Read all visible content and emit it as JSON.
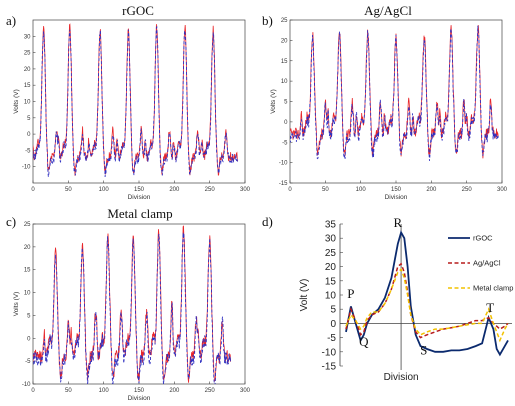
{
  "figure": {
    "panels": [
      {
        "letter": "a)",
        "title": "rGOC"
      },
      {
        "letter": "b)",
        "title": "Ag/AgCl"
      },
      {
        "letter": "c)",
        "title": "Metal clamp"
      },
      {
        "letter": "d)",
        "title": ""
      }
    ]
  },
  "colors": {
    "red": "#e8262a",
    "blue": "#3030c0",
    "navy": "#0b2a6e",
    "darkred": "#b71c1c",
    "yellow": "#f2c200",
    "axis": "#444444"
  },
  "chart_data": [
    {
      "type": "line",
      "title": "rGOC",
      "xlabel": "Division",
      "ylabel": "Volts (V)",
      "xlim": [
        0,
        300
      ],
      "ylim": [
        -15,
        35
      ],
      "xticks": [
        0,
        50,
        100,
        150,
        200,
        250,
        300
      ],
      "yticks": [
        -10,
        -5,
        0,
        5,
        10,
        15,
        20,
        25,
        30
      ],
      "beats": [
        15,
        52,
        95,
        135,
        175,
        215,
        255
      ],
      "peaks": [
        33,
        33,
        32,
        32,
        33,
        33,
        32
      ],
      "x_range": [
        0,
        290
      ],
      "baseline": -7,
      "series": [
        {
          "color": "red",
          "dash": "solid"
        },
        {
          "color": "blue",
          "dash": "dashed"
        }
      ]
    },
    {
      "type": "line",
      "title": "Ag/AgCl",
      "xlabel": "Division",
      "ylabel": "Volts (V)",
      "xlim": [
        0,
        300
      ],
      "ylim": [
        -15,
        25
      ],
      "xticks": [
        0,
        50,
        100,
        150,
        200,
        250,
        300
      ],
      "yticks": [
        -15,
        -10,
        -5,
        0,
        5,
        10,
        15,
        20,
        25
      ],
      "beats": [
        32,
        70,
        110,
        150,
        190,
        228,
        266
      ],
      "peaks": [
        21,
        22,
        22,
        21,
        21,
        23,
        23
      ],
      "x_range": [
        0,
        295
      ],
      "baseline": -3,
      "series": [
        {
          "color": "red",
          "dash": "solid"
        },
        {
          "color": "blue",
          "dash": "dashed"
        }
      ]
    },
    {
      "type": "line",
      "title": "Metal clamp",
      "xlabel": "Division",
      "ylabel": "Volts (V)",
      "xlim": [
        0,
        300
      ],
      "ylim": [
        -10,
        25
      ],
      "xticks": [
        0,
        50,
        100,
        150,
        200,
        250,
        300
      ],
      "yticks": [
        -10,
        -5,
        0,
        5,
        10,
        15,
        20,
        25
      ],
      "beats": [
        32,
        70,
        106,
        142,
        178,
        213,
        250
      ],
      "peaks": [
        19,
        20,
        22,
        22,
        23,
        24,
        22
      ],
      "x_range": [
        0,
        280
      ],
      "baseline": -4,
      "series": [
        {
          "color": "red",
          "dash": "solid"
        },
        {
          "color": "blue",
          "dash": "dashed"
        }
      ]
    },
    {
      "type": "line",
      "title": "",
      "xlabel": "Division",
      "ylabel": "Volt (V)",
      "ylim": [
        -15,
        35
      ],
      "yticks": [
        -15,
        -10,
        -5,
        0,
        5,
        10,
        15,
        20,
        25,
        30,
        35
      ],
      "xlim": [
        0,
        100
      ],
      "legend_position": "top-right",
      "wave_labels": [
        "P",
        "Q",
        "R",
        "S",
        "T"
      ],
      "series": [
        {
          "name": "rGOC",
          "color": "navy",
          "dash": "solid",
          "x": [
            0,
            3,
            6,
            9,
            11,
            13,
            16,
            20,
            24,
            28,
            30,
            32,
            34,
            36,
            38,
            40,
            43,
            46,
            50,
            55,
            60,
            65,
            70,
            75,
            80,
            84,
            88,
            91,
            93,
            95,
            98,
            100
          ],
          "y": [
            -3,
            6,
            0,
            -6,
            -4,
            0,
            3,
            5,
            9,
            16,
            22,
            28,
            32,
            30,
            20,
            6,
            -4,
            -8,
            -9,
            -10,
            -10,
            -9.5,
            -9.5,
            -9,
            -8,
            -7,
            2,
            -2,
            -9,
            -11,
            -8,
            -6
          ]
        },
        {
          "name": "Ag/AgCl",
          "color": "darkred",
          "dash": "dashed",
          "x": [
            0,
            3,
            6,
            9,
            11,
            13,
            16,
            20,
            24,
            28,
            30,
            32,
            34,
            36,
            38,
            40,
            43,
            46,
            50,
            55,
            60,
            65,
            70,
            75,
            80,
            84,
            88,
            91,
            93,
            95,
            98,
            100
          ],
          "y": [
            -2,
            5,
            1,
            -4,
            -3,
            1,
            3,
            4,
            7,
            12,
            16,
            20,
            21,
            18,
            11,
            3,
            -3,
            -5,
            -4,
            -3,
            -2,
            -1.5,
            -1,
            0,
            1,
            1,
            2,
            0,
            -1,
            -2,
            -1,
            0
          ]
        },
        {
          "name": "Metal clamp",
          "color": "yellow",
          "dash": "dashed",
          "x": [
            0,
            3,
            6,
            9,
            11,
            13,
            16,
            20,
            24,
            28,
            30,
            32,
            34,
            36,
            38,
            40,
            43,
            46,
            50,
            55,
            60,
            65,
            70,
            75,
            80,
            84,
            88,
            91,
            93,
            95,
            98,
            100
          ],
          "y": [
            -1,
            3,
            1,
            -2,
            -1,
            2,
            4,
            4,
            7,
            12,
            15,
            18,
            19,
            16,
            10,
            3,
            -2,
            -4,
            -3,
            -2,
            -2,
            -1.5,
            -1,
            -0.5,
            0,
            0,
            5,
            0,
            -3,
            -6,
            -2,
            0
          ]
        }
      ]
    }
  ]
}
